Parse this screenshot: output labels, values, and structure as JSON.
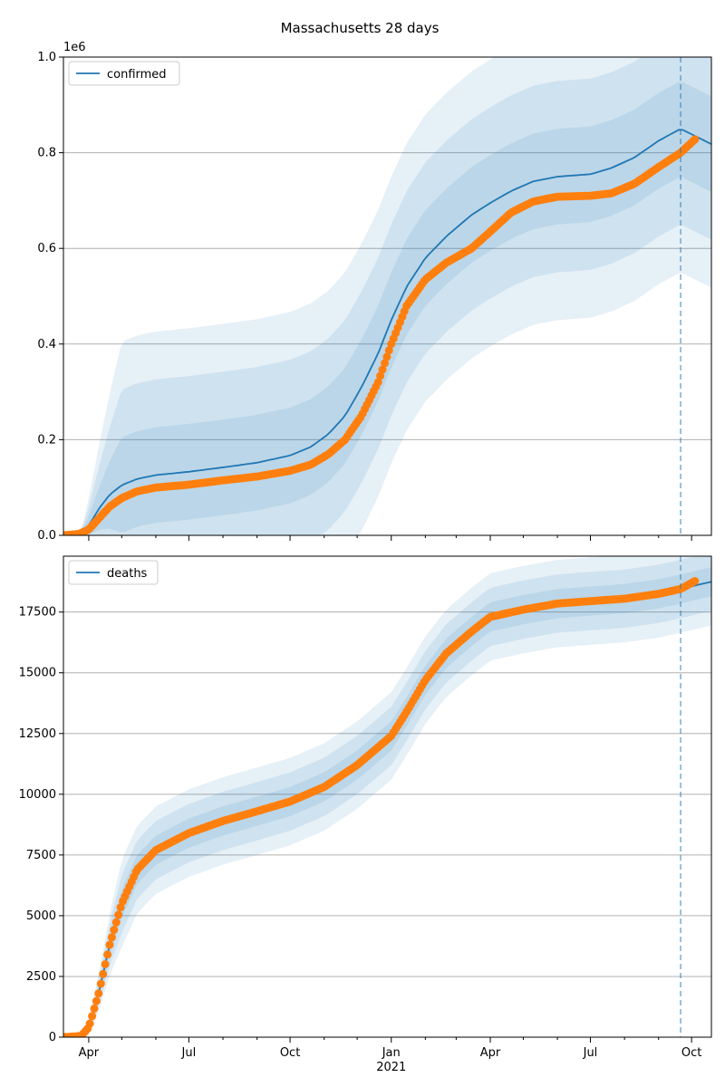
{
  "title": "Massachusetts 28 days",
  "colors": {
    "model": "#1f77b4",
    "observed": "#ff7f0e",
    "band": "#1f77b4",
    "grid": "#b0b0b0",
    "vline": "#1f77b4"
  },
  "x_axis": {
    "ticks": [
      "Apr",
      "Jul",
      "Oct",
      "Jan",
      "Apr",
      "Jul",
      "Oct"
    ],
    "sublabel": "2021",
    "range": [
      "2020-03-09",
      "2021-10-19"
    ],
    "forecast_start": "2021-09-21"
  },
  "chart_data": [
    {
      "type": "line",
      "panel": "top",
      "legend": "confirmed",
      "legend_position": "top-left",
      "offset_label": "1e6",
      "yticks": [
        "0.0",
        "0.2",
        "0.4",
        "0.6",
        "0.8",
        "1.0"
      ],
      "ylim": [
        0,
        1.0
      ],
      "grid": "horizontal",
      "series": [
        {
          "name": "confirmed",
          "kind": "model",
          "x": [
            "2020-03-09",
            "2020-03-23",
            "2020-04-01",
            "2020-04-10",
            "2020-04-20",
            "2020-05-01",
            "2020-05-15",
            "2020-06-01",
            "2020-07-01",
            "2020-08-01",
            "2020-09-01",
            "2020-10-01",
            "2020-10-20",
            "2020-11-05",
            "2020-11-20",
            "2020-12-05",
            "2020-12-20",
            "2021-01-01",
            "2021-01-15",
            "2021-02-01",
            "2021-02-20",
            "2021-03-15",
            "2021-04-01",
            "2021-04-20",
            "2021-05-10",
            "2021-06-01",
            "2021-07-01",
            "2021-07-20",
            "2021-08-10",
            "2021-09-01",
            "2021-09-21",
            "2021-10-19"
          ],
          "values": [
            0.0,
            0.003,
            0.02,
            0.055,
            0.085,
            0.105,
            0.118,
            0.126,
            0.133,
            0.142,
            0.152,
            0.167,
            0.185,
            0.212,
            0.25,
            0.31,
            0.38,
            0.45,
            0.52,
            0.58,
            0.625,
            0.67,
            0.695,
            0.72,
            0.74,
            0.75,
            0.755,
            0.768,
            0.79,
            0.825,
            0.85,
            0.818
          ]
        },
        {
          "name": "observed",
          "kind": "observed",
          "x": [
            "2020-03-09",
            "2020-03-23",
            "2020-04-01",
            "2020-04-10",
            "2020-04-20",
            "2020-05-01",
            "2020-05-15",
            "2020-06-01",
            "2020-07-01",
            "2020-08-01",
            "2020-09-01",
            "2020-10-01",
            "2020-10-20",
            "2020-11-05",
            "2020-11-20",
            "2020-12-05",
            "2020-12-20",
            "2021-01-01",
            "2021-01-15",
            "2021-02-01",
            "2021-02-20",
            "2021-03-15",
            "2021-04-01",
            "2021-04-20",
            "2021-05-10",
            "2021-06-01",
            "2021-07-01",
            "2021-07-20",
            "2021-08-10",
            "2021-09-01",
            "2021-09-21",
            "2021-10-05"
          ],
          "values": [
            0.0,
            0.003,
            0.012,
            0.035,
            0.06,
            0.078,
            0.092,
            0.1,
            0.106,
            0.115,
            0.123,
            0.135,
            0.148,
            0.17,
            0.2,
            0.25,
            0.32,
            0.4,
            0.48,
            0.535,
            0.57,
            0.6,
            0.635,
            0.675,
            0.698,
            0.708,
            0.71,
            0.715,
            0.735,
            0.77,
            0.8,
            0.83
          ]
        }
      ],
      "band_spreads": [
        0.1,
        0.2,
        0.3
      ]
    },
    {
      "type": "line",
      "panel": "bottom",
      "legend": "deaths",
      "legend_position": "top-left",
      "yticks": [
        "0",
        "2500",
        "5000",
        "7500",
        "10000",
        "12500",
        "15000",
        "17500"
      ],
      "ylim": [
        0,
        19800
      ],
      "grid": "horizontal",
      "series": [
        {
          "name": "deaths",
          "kind": "model",
          "x": [
            "2020-03-09",
            "2020-03-25",
            "2020-04-01",
            "2020-04-10",
            "2020-04-20",
            "2020-05-01",
            "2020-05-15",
            "2020-06-01",
            "2020-07-01",
            "2020-08-01",
            "2020-09-01",
            "2020-10-01",
            "2020-11-01",
            "2020-12-01",
            "2021-01-01",
            "2021-01-15",
            "2021-02-01",
            "2021-02-20",
            "2021-03-15",
            "2021-04-01",
            "2021-05-01",
            "2021-06-01",
            "2021-07-01",
            "2021-08-01",
            "2021-09-01",
            "2021-09-21",
            "2021-10-19"
          ],
          "values": [
            0,
            50,
            400,
            1800,
            3800,
            5500,
            6900,
            7700,
            8400,
            8900,
            9300,
            9700,
            10300,
            11200,
            12400,
            13400,
            14700,
            15800,
            16700,
            17300,
            17600,
            17850,
            17950,
            18050,
            18250,
            18450,
            18750
          ]
        },
        {
          "name": "observed",
          "kind": "observed",
          "x": [
            "2020-03-09",
            "2020-03-25",
            "2020-04-01",
            "2020-04-10",
            "2020-04-20",
            "2020-05-01",
            "2020-05-15",
            "2020-06-01",
            "2020-07-01",
            "2020-08-01",
            "2020-09-01",
            "2020-10-01",
            "2020-11-01",
            "2020-12-01",
            "2021-01-01",
            "2021-01-15",
            "2021-02-01",
            "2021-02-20",
            "2021-03-15",
            "2021-04-01",
            "2021-05-01",
            "2021-06-01",
            "2021-07-01",
            "2021-08-01",
            "2021-09-01",
            "2021-09-21",
            "2021-10-05"
          ],
          "values": [
            0,
            50,
            400,
            1800,
            3800,
            5500,
            6900,
            7700,
            8400,
            8900,
            9300,
            9700,
            10300,
            11200,
            12400,
            13400,
            14700,
            15800,
            16700,
            17300,
            17600,
            17850,
            17950,
            18050,
            18250,
            18450,
            18800
          ]
        }
      ],
      "band_spreads": [
        600,
        1200,
        1800
      ]
    }
  ]
}
